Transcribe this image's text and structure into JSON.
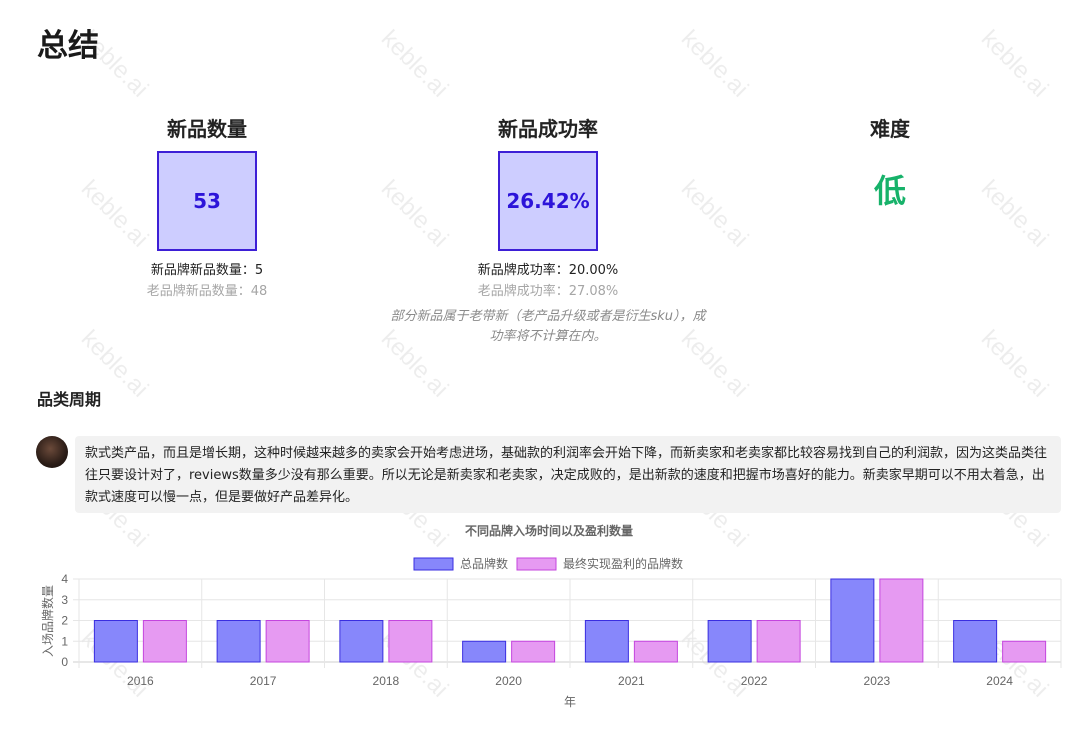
{
  "page_title": "总结",
  "stats": {
    "new_count": {
      "title": "新品数量",
      "value": "53",
      "sub_new_brand": "新品牌新品数量：5",
      "sub_old_brand": "老品牌新品数量：48"
    },
    "success_rate": {
      "title": "新品成功率",
      "value": "26.42%",
      "sub_new_brand": "新品牌成功率：20.00%",
      "sub_old_brand": "老品牌成功率：27.08%"
    },
    "difficulty": {
      "title": "难度",
      "value": "低"
    },
    "note_line1": "部分新品属于老带新（老产品升级或者是衍生sku），成",
    "note_line2": "功率将不计算在内。"
  },
  "category_cycle": {
    "title": "品类周期",
    "comment": "款式类产品，而且是增长期，这种时候越来越多的卖家会开始考虑进场，基础款的利润率会开始下降，而新卖家和老卖家都比较容易找到自己的利润款，因为这类品类往往只要设计对了，reviews数量多少没有那么重要。所以无论是新卖家和老卖家，决定成败的，是出新款的速度和把握市场喜好的能力。新卖家早期可以不用太着急，出款式速度可以慢一点，但是要做好产品差异化。"
  },
  "watermark": "keble.ai",
  "chart_data": {
    "type": "bar",
    "title": "不同品牌入场时间以及盈利数量",
    "xlabel": "年",
    "ylabel": "入场品牌数量",
    "categories": [
      "2016",
      "2017",
      "2018",
      "2020",
      "2021",
      "2022",
      "2023",
      "2024"
    ],
    "series": [
      {
        "name": "总品牌数",
        "values": [
          2,
          2,
          2,
          1,
          2,
          2,
          4,
          2
        ],
        "fill": "#8787fb",
        "stroke": "#3a2ee0"
      },
      {
        "name": "最终实现盈利的品牌数",
        "values": [
          2,
          2,
          2,
          1,
          1,
          2,
          4,
          1
        ],
        "fill": "#e69af2",
        "stroke": "#c445de"
      }
    ],
    "ylim": [
      0,
      4
    ],
    "yticks": [
      0,
      1,
      2,
      3,
      4
    ],
    "grid": true,
    "legend": "top-center"
  }
}
